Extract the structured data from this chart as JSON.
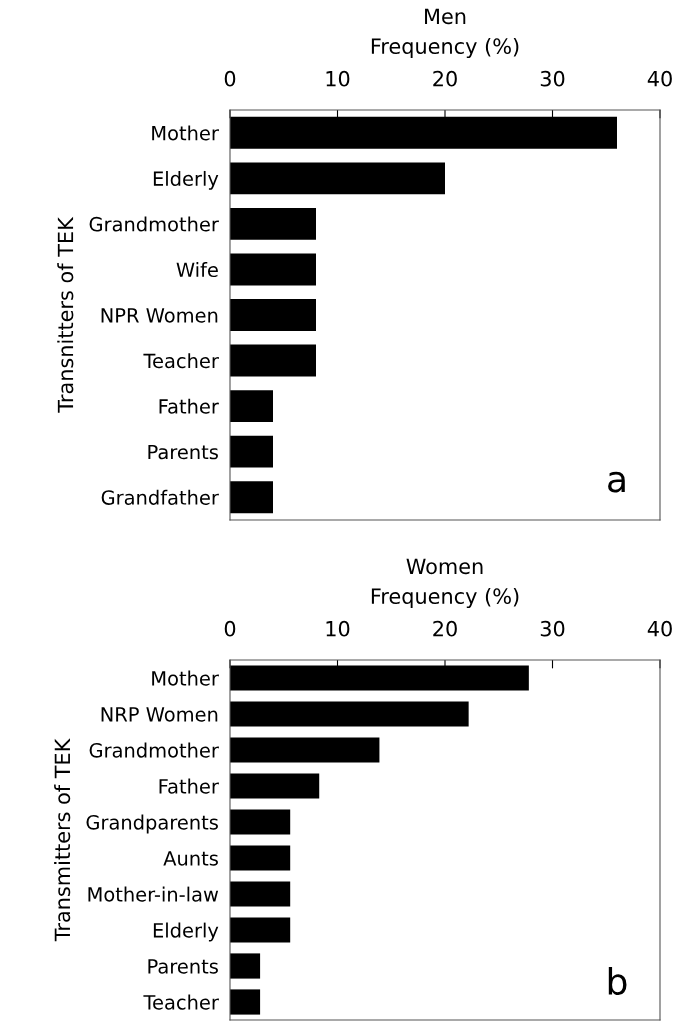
{
  "chart_data": [
    {
      "type": "bar",
      "orientation": "horizontal",
      "title": "Men",
      "xlabel": "Frequency (%)",
      "ylabel": "Transnitters of TEK",
      "categories": [
        "Mother",
        "Elderly",
        "Grandmother",
        "Wife",
        "NPR Women",
        "Teacher",
        "Father",
        "Parents",
        "Grandfather"
      ],
      "values": [
        36,
        20,
        8,
        8,
        8,
        8,
        4,
        4,
        4
      ],
      "color": "#000000",
      "xlim": [
        0,
        40
      ],
      "xticks": [
        0,
        10,
        20,
        30,
        40
      ],
      "grid": false,
      "annotations": [
        "a"
      ]
    },
    {
      "type": "bar",
      "orientation": "horizontal",
      "title": "Women",
      "xlabel": "Frequency (%)",
      "ylabel": "Transmitters of TEK",
      "categories": [
        "Mother",
        "NRP Women",
        "Grandmother",
        "Father",
        "Grandparents",
        "Aunts",
        "Mother-in-law",
        "Elderly",
        "Parents",
        "Teacher"
      ],
      "values": [
        27.8,
        22.2,
        13.9,
        8.3,
        5.6,
        5.6,
        5.6,
        5.6,
        2.8,
        2.8
      ],
      "color": "#000000",
      "xlim": [
        0,
        40
      ],
      "xticks": [
        0,
        10,
        20,
        30,
        40
      ],
      "grid": false,
      "annotations": [
        "b"
      ]
    }
  ]
}
